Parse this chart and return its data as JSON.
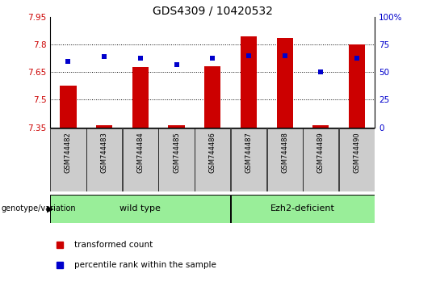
{
  "title": "GDS4309 / 10420532",
  "samples": [
    "GSM744482",
    "GSM744483",
    "GSM744484",
    "GSM744485",
    "GSM744486",
    "GSM744487",
    "GSM744488",
    "GSM744489",
    "GSM744490"
  ],
  "transformed_count": [
    7.575,
    7.362,
    7.68,
    7.363,
    7.682,
    7.845,
    7.838,
    7.362,
    7.803
  ],
  "percentile_rank": [
    60,
    64,
    63,
    57,
    63,
    65,
    65,
    50,
    63
  ],
  "ylim_left": [
    7.35,
    7.95
  ],
  "ylim_right": [
    0,
    100
  ],
  "yticks_left": [
    7.35,
    7.5,
    7.65,
    7.8,
    7.95
  ],
  "ytick_labels_left": [
    "7.35",
    "7.5",
    "7.65",
    "7.8",
    "7.95"
  ],
  "yticks_right": [
    0,
    25,
    50,
    75,
    100
  ],
  "ytick_labels_right": [
    "0",
    "25",
    "50",
    "75",
    "100%"
  ],
  "bar_color": "#cc0000",
  "dot_color": "#0000cc",
  "bar_baseline": 7.35,
  "wild_type_label": "wild type",
  "ezh2_label": "Ezh2-deficient",
  "group_bg_color": "#99ee99",
  "sample_bg_color": "#cccccc",
  "legend_red_label": "transformed count",
  "legend_blue_label": "percentile rank within the sample",
  "genotype_label": "genotype/variation",
  "title_fontsize": 10,
  "tick_fontsize": 7.5,
  "left_tick_color": "#cc0000",
  "right_tick_color": "#0000cc",
  "bar_width": 0.45
}
